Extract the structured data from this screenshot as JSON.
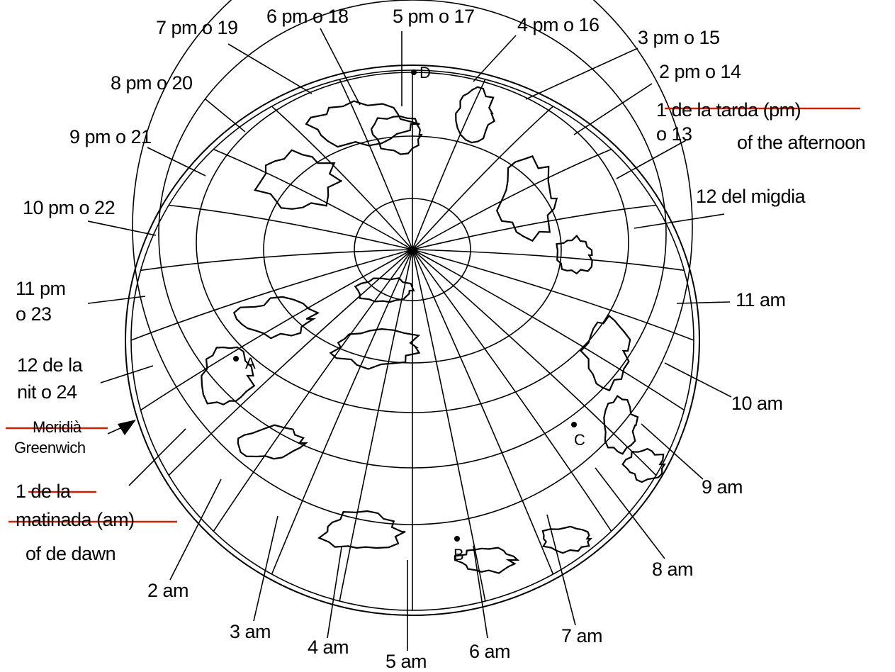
{
  "labels": {
    "h19": "7 pm o 19",
    "h18": "6 pm o 18",
    "h17": "5 pm o 17",
    "h16": "4 pm o 16",
    "h15": "3 pm o 15",
    "h14": "2 pm o 14",
    "h13_line1": "1 de la tarda (pm)",
    "h13_line2": "o 13",
    "h13_correction": "of the afternoon",
    "h20": "8 pm o 20",
    "h21": "9 pm o 21",
    "h22": "10 pm o 22",
    "h23_line1": "11 pm",
    "h23_line2": "o 23",
    "h24_line1": "12 de la",
    "h24_line2": "nit o 24",
    "meridian_line1": "Meridià",
    "meridian_line2": "Greenwich",
    "h1_line1": "1 de la",
    "h1_line2": "matinada (am)",
    "h1_correction": "of de dawn",
    "h12": "12 del migdia",
    "h11": "11 am",
    "h10": "10 am",
    "h9": "9 am",
    "h8": "8 am",
    "h7": "7 am",
    "h6": "6 am",
    "h5": "5 am",
    "h4": "4 am",
    "h3": "3 am",
    "h2": "2 am"
  },
  "points": {
    "A": "A",
    "B": "B",
    "C": "C",
    "D": "D"
  },
  "colors": {
    "ink": "#000000",
    "strike": "#cc2200"
  }
}
